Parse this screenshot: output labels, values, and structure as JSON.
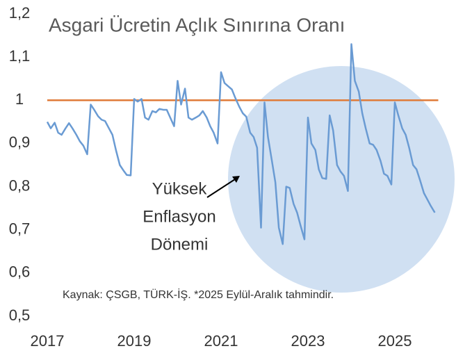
{
  "chart_data": {
    "type": "line",
    "title": "Asgari Ücretin Açlık Sınırına Oranı",
    "source": "Kaynak: ÇSGB, TÜRK-İŞ. *2025 Eylül-Aralık tahmindir.",
    "annotation": [
      "Yüksek",
      "Enflasyon",
      "Dönemi"
    ],
    "x": [
      2017,
      2017.08,
      2017.17,
      2017.25,
      2017.33,
      2017.42,
      2017.5,
      2017.58,
      2017.67,
      2017.75,
      2017.83,
      2017.92,
      2018,
      2018.08,
      2018.17,
      2018.25,
      2018.33,
      2018.42,
      2018.5,
      2018.58,
      2018.67,
      2018.75,
      2018.83,
      2018.92,
      2019,
      2019.08,
      2019.17,
      2019.25,
      2019.33,
      2019.42,
      2019.5,
      2019.58,
      2019.67,
      2019.75,
      2019.83,
      2019.92,
      2020,
      2020.08,
      2020.17,
      2020.25,
      2020.33,
      2020.42,
      2020.5,
      2020.58,
      2020.67,
      2020.75,
      2020.83,
      2020.92,
      2021,
      2021.08,
      2021.17,
      2021.25,
      2021.33,
      2021.42,
      2021.5,
      2021.58,
      2021.67,
      2021.75,
      2021.83,
      2021.92,
      2022,
      2022.08,
      2022.17,
      2022.25,
      2022.33,
      2022.42,
      2022.5,
      2022.58,
      2022.67,
      2022.75,
      2022.83,
      2022.92,
      2023,
      2023.08,
      2023.17,
      2023.25,
      2023.33,
      2023.42,
      2023.5,
      2023.58,
      2023.67,
      2023.75,
      2023.83,
      2023.92,
      2024,
      2024.08,
      2024.17,
      2024.25,
      2024.33,
      2024.42,
      2024.5,
      2024.58,
      2024.67,
      2024.75,
      2024.83,
      2024.92,
      2025,
      2025.08,
      2025.17,
      2025.25,
      2025.33,
      2025.42,
      2025.5,
      2025.58,
      2025.67,
      2025.75,
      2025.83,
      2025.92
    ],
    "series": [
      {
        "color": "#6a9bd3",
        "values": [
          0.95,
          0.935,
          0.948,
          0.925,
          0.92,
          0.935,
          0.947,
          0.935,
          0.92,
          0.905,
          0.895,
          0.875,
          0.99,
          0.978,
          0.963,
          0.955,
          0.952,
          0.935,
          0.92,
          0.885,
          0.85,
          0.838,
          0.827,
          0.826,
          1.003,
          0.997,
          1.003,
          0.96,
          0.955,
          0.975,
          0.972,
          0.98,
          0.978,
          0.978,
          0.96,
          0.94,
          1.045,
          0.99,
          1.027,
          0.96,
          0.955,
          0.96,
          0.965,
          0.975,
          0.96,
          0.94,
          0.925,
          0.9,
          1.065,
          1.04,
          1.032,
          1.025,
          1.005,
          0.985,
          0.97,
          0.962,
          0.925,
          0.915,
          0.89,
          0.705,
          0.995,
          0.915,
          0.86,
          0.81,
          0.705,
          0.667,
          0.8,
          0.797,
          0.76,
          0.74,
          0.71,
          0.678,
          0.96,
          0.9,
          0.885,
          0.84,
          0.82,
          0.818,
          0.965,
          0.93,
          0.85,
          0.835,
          0.825,
          0.79,
          1.13,
          1.045,
          1.02,
          0.97,
          0.935,
          0.9,
          0.897,
          0.885,
          0.86,
          0.83,
          0.825,
          0.805,
          0.995,
          0.965,
          0.935,
          0.92,
          0.89,
          0.85,
          0.84,
          0.815,
          0.785,
          0.77,
          0.755,
          0.74
        ]
      }
    ],
    "reference_line": {
      "value": 1,
      "color": "#e07b39"
    },
    "xlim": [
      2017,
      2026
    ],
    "xticks": [
      2017,
      2019,
      2021,
      2023,
      2025
    ],
    "ylim": [
      0.5,
      1.2
    ],
    "yticks": [
      {
        "value": 0.5,
        "label": "0,5"
      },
      {
        "value": 0.6,
        "label": "0,6"
      },
      {
        "value": 0.7,
        "label": "0,7"
      },
      {
        "value": 0.8,
        "label": "0,8"
      },
      {
        "value": 0.9,
        "label": "0,9"
      },
      1,
      {
        "value": 1.1,
        "label": "1,1"
      },
      {
        "value": 1.2,
        "label": "1,2"
      }
    ],
    "grid": false
  }
}
